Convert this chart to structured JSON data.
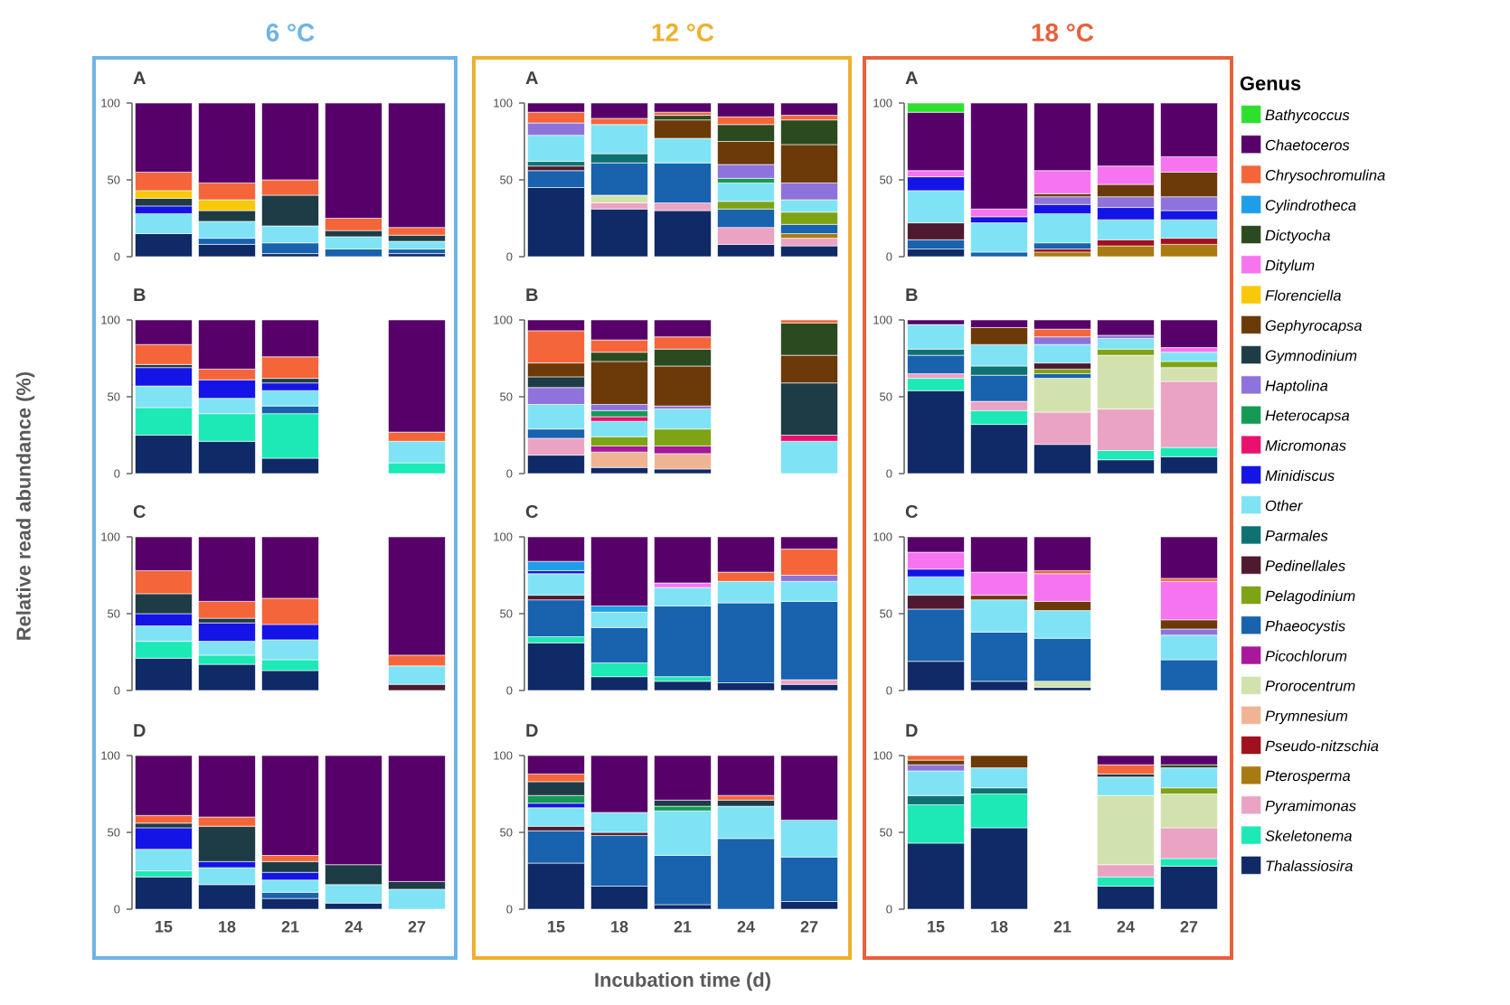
{
  "chart_data": [
    {
      "type": "bar",
      "stacked": true,
      "title": "A",
      "annotations": [
        "6 °C"
      ],
      "ylabel": "Relative read abundance  (%)",
      "legend": "right",
      "legend_title": "Genus",
      "categories": [
        "15",
        "18",
        "21",
        "24",
        "27"
      ],
      "ylim": [
        0,
        100
      ],
      "yticks": [
        0,
        50,
        100
      ],
      "tick_labels": "y",
      "series": [
        {
          "name": "Thalassiosira",
          "color": "#0f2a66",
          "values": [
            15,
            8,
            2,
            0,
            2
          ]
        },
        {
          "name": "Skeletonema",
          "color": "#1de9b6",
          "values": [
            0,
            0,
            0,
            0,
            0
          ]
        },
        {
          "name": "Pyramimonas",
          "color": "#eba3c3",
          "values": [
            0,
            0,
            0,
            0,
            0
          ]
        },
        {
          "name": "Pterosperma",
          "color": "#a87a12",
          "values": [
            0,
            0,
            0,
            0,
            0
          ]
        },
        {
          "name": "Pseudo-nitzschia",
          "color": "#a0101e",
          "values": [
            0,
            0,
            0,
            0,
            0
          ]
        },
        {
          "name": "Prymnesium",
          "color": "#f0b495",
          "values": [
            0,
            0,
            0,
            0,
            0
          ]
        },
        {
          "name": "Prorocentrum",
          "color": "#d2e2ae",
          "values": [
            0,
            0,
            0,
            0,
            0
          ]
        },
        {
          "name": "Picochlorum",
          "color": "#a8189a",
          "values": [
            0,
            0,
            0,
            0,
            0
          ]
        },
        {
          "name": "Phaeocystis",
          "color": "#1862ae",
          "values": [
            0,
            4,
            7,
            5,
            3
          ]
        },
        {
          "name": "Pelagodinium",
          "color": "#7ea314",
          "values": [
            0,
            0,
            0,
            0,
            0
          ]
        },
        {
          "name": "Pedinellales",
          "color": "#4e1a30",
          "values": [
            0,
            0,
            0,
            0,
            0
          ]
        },
        {
          "name": "Parmales",
          "color": "#0f7272",
          "values": [
            0,
            0,
            0,
            0,
            0
          ]
        },
        {
          "name": "Other",
          "color": "#7fe3f5",
          "values": [
            13,
            11,
            11,
            8,
            5
          ]
        },
        {
          "name": "Minidiscus",
          "color": "#1414e6",
          "values": [
            5,
            0,
            0,
            0,
            0
          ]
        },
        {
          "name": "Micromonas",
          "color": "#e8126e",
          "values": [
            0,
            0,
            0,
            0,
            0
          ]
        },
        {
          "name": "Heterocapsa",
          "color": "#149a55",
          "values": [
            0,
            0,
            0,
            0,
            0
          ]
        },
        {
          "name": "Haptolina",
          "color": "#8e73dc",
          "values": [
            0,
            0,
            0,
            0,
            0
          ]
        },
        {
          "name": "Gymnodinium",
          "color": "#1e3c46",
          "values": [
            5,
            7,
            20,
            4,
            4
          ]
        },
        {
          "name": "Gephyrocapsa",
          "color": "#6b3a08",
          "values": [
            0,
            0,
            0,
            0,
            0
          ]
        },
        {
          "name": "Florenciella",
          "color": "#f8c80a",
          "values": [
            5,
            7,
            0,
            0,
            0
          ]
        },
        {
          "name": "Ditylum",
          "color": "#f674f0",
          "values": [
            0,
            0,
            0,
            0,
            0
          ]
        },
        {
          "name": "Dictyocha",
          "color": "#2c4a20",
          "values": [
            0,
            0,
            0,
            0,
            0
          ]
        },
        {
          "name": "Cylindrotheca",
          "color": "#1e9ee8",
          "values": [
            0,
            0,
            0,
            0,
            0
          ]
        },
        {
          "name": "Chrysochromulina",
          "color": "#f4663a",
          "values": [
            12,
            11,
            10,
            8,
            5
          ]
        },
        {
          "name": "Chaetoceros",
          "color": "#57006a",
          "values": [
            45,
            52,
            50,
            75,
            81
          ]
        },
        {
          "name": "Bathycoccus",
          "color": "#2ee02e",
          "values": [
            0,
            0,
            0,
            0,
            0
          ]
        }
      ]
    },
    {
      "type": "bar",
      "stacked": true,
      "title": "A",
      "annotations": [
        "12 °C"
      ],
      "categories": [
        "15",
        "18",
        "21",
        "24",
        "27"
      ],
      "ylim": [
        0,
        100
      ],
      "yticks": [
        0,
        50,
        100
      ],
      "tick_labels": "y",
      "series": [
        {
          "color": "#0f2a66",
          "values": [
            45,
            31,
            30,
            8,
            7
          ]
        },
        {
          "color": "#eba3c3",
          "values": [
            0,
            4,
            5,
            11,
            5
          ]
        },
        {
          "color": "#a87a12",
          "values": [
            0,
            0,
            0,
            0,
            3
          ]
        },
        {
          "color": "#d2e2ae",
          "values": [
            0,
            5,
            0,
            0,
            0
          ]
        },
        {
          "color": "#1862ae",
          "values": [
            11,
            21,
            26,
            12,
            6
          ]
        },
        {
          "color": "#7ea314",
          "values": [
            0,
            0,
            0,
            5,
            8
          ]
        },
        {
          "color": "#4e1a30",
          "values": [
            3,
            0,
            0,
            0,
            0
          ]
        },
        {
          "color": "#0f7272",
          "values": [
            3,
            6,
            0,
            0,
            0
          ]
        },
        {
          "color": "#7fe3f5",
          "values": [
            17,
            19,
            16,
            12,
            8
          ]
        },
        {
          "color": "#149a55",
          "values": [
            0,
            0,
            0,
            3,
            0
          ]
        },
        {
          "color": "#8e73dc",
          "values": [
            8,
            0,
            0,
            9,
            11
          ]
        },
        {
          "color": "#6b3a08",
          "values": [
            0,
            0,
            12,
            15,
            25
          ]
        },
        {
          "color": "#2c4a20",
          "values": [
            0,
            0,
            3,
            11,
            16
          ]
        },
        {
          "color": "#f4663a",
          "values": [
            7,
            4,
            2,
            5,
            3
          ]
        },
        {
          "color": "#57006a",
          "values": [
            6,
            10,
            6,
            9,
            8
          ]
        }
      ]
    },
    {
      "type": "bar",
      "stacked": true,
      "title": "A",
      "annotations": [
        "18 °C"
      ],
      "categories": [
        "15",
        "18",
        "21",
        "24",
        "27"
      ],
      "ylim": [
        0,
        100
      ],
      "yticks": [
        0,
        50,
        100
      ],
      "tick_labels": "y",
      "series": [
        {
          "color": "#0f2a66",
          "values": [
            5,
            0,
            0,
            0,
            0
          ]
        },
        {
          "color": "#a87a12",
          "values": [
            0,
            0,
            3,
            7,
            8
          ]
        },
        {
          "color": "#a0101e",
          "values": [
            0,
            0,
            2,
            4,
            4
          ]
        },
        {
          "color": "#1862ae",
          "values": [
            6,
            3,
            4,
            0,
            0
          ]
        },
        {
          "color": "#4e1a30",
          "values": [
            11,
            0,
            0,
            0,
            0
          ]
        },
        {
          "color": "#7fe3f5",
          "values": [
            21,
            19,
            19,
            13,
            12
          ]
        },
        {
          "color": "#1414e6",
          "values": [
            9,
            4,
            6,
            8,
            6
          ]
        },
        {
          "color": "#8e73dc",
          "values": [
            0,
            0,
            5,
            7,
            9
          ]
        },
        {
          "color": "#6b3a08",
          "values": [
            0,
            0,
            2,
            8,
            16
          ]
        },
        {
          "color": "#f674f0",
          "values": [
            4,
            5,
            15,
            12,
            10
          ]
        },
        {
          "color": "#57006a",
          "values": [
            38,
            69,
            44,
            41,
            35
          ]
        },
        {
          "color": "#2ee02e",
          "values": [
            6,
            0,
            0,
            0,
            0
          ]
        }
      ]
    },
    {
      "type": "bar",
      "stacked": true,
      "title": "B",
      "categories": [
        "15",
        "18",
        "21",
        "24",
        "27"
      ],
      "ylim": [
        0,
        100
      ],
      "yticks": [
        0,
        50,
        100
      ],
      "tick_labels": "y",
      "series": [
        {
          "color": "#0f2a66",
          "values": [
            25,
            21,
            10,
            null,
            0
          ]
        },
        {
          "color": "#1de9b6",
          "values": [
            18,
            18,
            29,
            null,
            7
          ]
        },
        {
          "color": "#1862ae",
          "values": [
            0,
            0,
            5,
            null,
            0
          ]
        },
        {
          "color": "#7fe3f5",
          "values": [
            14,
            10,
            10,
            null,
            14
          ]
        },
        {
          "color": "#1414e6",
          "values": [
            12,
            12,
            5,
            null,
            0
          ]
        },
        {
          "color": "#1e3c46",
          "values": [
            2,
            0,
            3,
            null,
            0
          ]
        },
        {
          "color": "#f4663a",
          "values": [
            13,
            7,
            14,
            null,
            6
          ]
        },
        {
          "color": "#57006a",
          "values": [
            16,
            32,
            24,
            null,
            73
          ]
        }
      ]
    },
    {
      "type": "bar",
      "stacked": true,
      "title": "B",
      "categories": [
        "15",
        "18",
        "21",
        "24",
        "27"
      ],
      "ylim": [
        0,
        100
      ],
      "yticks": [
        0,
        50,
        100
      ],
      "tick_labels": "y",
      "series": [
        {
          "color": "#0f2a66",
          "values": [
            12,
            4,
            3,
            null,
            0
          ]
        },
        {
          "color": "#eba3c3",
          "values": [
            11,
            0,
            0,
            null,
            0
          ]
        },
        {
          "color": "#f0b495",
          "values": [
            0,
            10,
            10,
            null,
            0
          ]
        },
        {
          "color": "#a8189a",
          "values": [
            0,
            4,
            5,
            null,
            0
          ]
        },
        {
          "color": "#1862ae",
          "values": [
            6,
            0,
            0,
            null,
            0
          ]
        },
        {
          "color": "#7ea314",
          "values": [
            0,
            6,
            11,
            null,
            0
          ]
        },
        {
          "color": "#7fe3f5",
          "values": [
            16,
            10,
            13,
            null,
            21
          ]
        },
        {
          "color": "#e8126e",
          "values": [
            0,
            3,
            0,
            null,
            4
          ]
        },
        {
          "color": "#149a55",
          "values": [
            0,
            4,
            0,
            null,
            0
          ]
        },
        {
          "color": "#8e73dc",
          "values": [
            11,
            4,
            2,
            null,
            0
          ]
        },
        {
          "color": "#1e3c46",
          "values": [
            7,
            0,
            0,
            null,
            34
          ]
        },
        {
          "color": "#6b3a08",
          "values": [
            9,
            28,
            26,
            null,
            18
          ]
        },
        {
          "color": "#2c4a20",
          "values": [
            0,
            6,
            11,
            null,
            21
          ]
        },
        {
          "color": "#f4663a",
          "values": [
            21,
            8,
            8,
            null,
            2
          ]
        },
        {
          "color": "#57006a",
          "values": [
            7,
            13,
            11,
            null,
            0
          ]
        }
      ]
    },
    {
      "type": "bar",
      "stacked": true,
      "title": "B",
      "categories": [
        "15",
        "18",
        "21",
        "24",
        "27"
      ],
      "ylim": [
        0,
        100
      ],
      "yticks": [
        0,
        50,
        100
      ],
      "tick_labels": "y",
      "series": [
        {
          "color": "#0f2a66",
          "values": [
            54,
            32,
            19,
            9,
            11
          ]
        },
        {
          "color": "#1de9b6",
          "values": [
            8,
            9,
            0,
            6,
            6
          ]
        },
        {
          "color": "#eba3c3",
          "values": [
            3,
            6,
            21,
            27,
            43
          ]
        },
        {
          "color": "#d2e2ae",
          "values": [
            0,
            0,
            22,
            35,
            9
          ]
        },
        {
          "color": "#1862ae",
          "values": [
            12,
            17,
            3,
            0,
            0
          ]
        },
        {
          "color": "#7ea314",
          "values": [
            0,
            0,
            3,
            4,
            4
          ]
        },
        {
          "color": "#4e1a30",
          "values": [
            0,
            0,
            4,
            0,
            0
          ]
        },
        {
          "color": "#0f7272",
          "values": [
            4,
            6,
            0,
            0,
            0
          ]
        },
        {
          "color": "#7fe3f5",
          "values": [
            16,
            14,
            12,
            7,
            6
          ]
        },
        {
          "color": "#8e73dc",
          "values": [
            0,
            0,
            5,
            2,
            0
          ]
        },
        {
          "color": "#6b3a08",
          "values": [
            0,
            11,
            0,
            0,
            0
          ]
        },
        {
          "color": "#f674f0",
          "values": [
            0,
            0,
            0,
            0,
            3
          ]
        },
        {
          "color": "#f4663a",
          "values": [
            0,
            0,
            5,
            0,
            0
          ]
        },
        {
          "color": "#57006a",
          "values": [
            3,
            5,
            6,
            10,
            18
          ]
        }
      ]
    },
    {
      "type": "bar",
      "stacked": true,
      "title": "C",
      "categories": [
        "15",
        "18",
        "21",
        "24",
        "27"
      ],
      "ylim": [
        0,
        100
      ],
      "yticks": [
        0,
        50,
        100
      ],
      "tick_labels": "y",
      "series": [
        {
          "color": "#0f2a66",
          "values": [
            21,
            17,
            13,
            null,
            0
          ]
        },
        {
          "color": "#1de9b6",
          "values": [
            11,
            6,
            7,
            null,
            0
          ]
        },
        {
          "color": "#4e1a30",
          "values": [
            0,
            0,
            0,
            null,
            4
          ]
        },
        {
          "color": "#7fe3f5",
          "values": [
            10,
            9,
            13,
            null,
            12
          ]
        },
        {
          "color": "#1414e6",
          "values": [
            8,
            12,
            10,
            null,
            0
          ]
        },
        {
          "color": "#1e3c46",
          "values": [
            13,
            3,
            0,
            null,
            0
          ]
        },
        {
          "color": "#f4663a",
          "values": [
            15,
            11,
            17,
            null,
            7
          ]
        },
        {
          "color": "#57006a",
          "values": [
            22,
            42,
            40,
            null,
            77
          ]
        }
      ]
    },
    {
      "type": "bar",
      "stacked": true,
      "title": "C",
      "categories": [
        "15",
        "18",
        "21",
        "24",
        "27"
      ],
      "ylim": [
        0,
        100
      ],
      "yticks": [
        0,
        50,
        100
      ],
      "tick_labels": "y",
      "series": [
        {
          "color": "#0f2a66",
          "values": [
            31,
            9,
            6,
            5,
            4
          ]
        },
        {
          "color": "#1de9b6",
          "values": [
            4,
            9,
            3,
            0,
            0
          ]
        },
        {
          "color": "#eba3c3",
          "values": [
            0,
            0,
            0,
            0,
            3
          ]
        },
        {
          "color": "#1862ae",
          "values": [
            24,
            23,
            46,
            52,
            51
          ]
        },
        {
          "color": "#4e1a30",
          "values": [
            3,
            0,
            0,
            0,
            0
          ]
        },
        {
          "color": "#7fe3f5",
          "values": [
            14,
            10,
            12,
            14,
            13
          ]
        },
        {
          "color": "#1414e6",
          "values": [
            2,
            0,
            0,
            0,
            0
          ]
        },
        {
          "color": "#8e73dc",
          "values": [
            0,
            0,
            0,
            0,
            4
          ]
        },
        {
          "color": "#f674f0",
          "values": [
            0,
            0,
            3,
            0,
            0
          ]
        },
        {
          "color": "#1e9ee8",
          "values": [
            6,
            4,
            0,
            0,
            0
          ]
        },
        {
          "color": "#f4663a",
          "values": [
            0,
            0,
            0,
            6,
            17
          ]
        },
        {
          "color": "#57006a",
          "values": [
            16,
            45,
            30,
            23,
            8
          ]
        }
      ]
    },
    {
      "type": "bar",
      "stacked": true,
      "title": "C",
      "categories": [
        "15",
        "18",
        "21",
        "24",
        "27"
      ],
      "ylim": [
        0,
        100
      ],
      "yticks": [
        0,
        50,
        100
      ],
      "tick_labels": "y",
      "series": [
        {
          "color": "#0f2a66",
          "values": [
            19,
            6,
            2,
            null,
            0
          ]
        },
        {
          "color": "#d2e2ae",
          "values": [
            0,
            0,
            4,
            null,
            0
          ]
        },
        {
          "color": "#1862ae",
          "values": [
            34,
            32,
            28,
            null,
            20
          ]
        },
        {
          "color": "#4e1a30",
          "values": [
            9,
            0,
            0,
            null,
            0
          ]
        },
        {
          "color": "#7fe3f5",
          "values": [
            12,
            21,
            18,
            null,
            16
          ]
        },
        {
          "color": "#1414e6",
          "values": [
            5,
            0,
            0,
            null,
            0
          ]
        },
        {
          "color": "#8e73dc",
          "values": [
            0,
            0,
            0,
            null,
            4
          ]
        },
        {
          "color": "#6b3a08",
          "values": [
            0,
            3,
            6,
            null,
            6
          ]
        },
        {
          "color": "#f674f0",
          "values": [
            11,
            15,
            18,
            null,
            25
          ]
        },
        {
          "color": "#f4663a",
          "values": [
            0,
            0,
            2,
            null,
            2
          ]
        },
        {
          "color": "#57006a",
          "values": [
            10,
            23,
            22,
            null,
            27
          ]
        }
      ]
    },
    {
      "type": "bar",
      "stacked": true,
      "title": "D",
      "categories": [
        "15",
        "18",
        "21",
        "24",
        "27"
      ],
      "ylim": [
        0,
        100
      ],
      "yticks": [
        0,
        50,
        100
      ],
      "series": [
        {
          "color": "#0f2a66",
          "values": [
            21,
            16,
            7,
            4,
            0
          ]
        },
        {
          "color": "#1de9b6",
          "values": [
            4,
            0,
            0,
            0,
            0
          ]
        },
        {
          "color": "#1862ae",
          "values": [
            0,
            0,
            4,
            0,
            0
          ]
        },
        {
          "color": "#7fe3f5",
          "values": [
            14,
            11,
            8,
            12,
            13
          ]
        },
        {
          "color": "#1414e6",
          "values": [
            14,
            4,
            5,
            0,
            0
          ]
        },
        {
          "color": "#1e3c46",
          "values": [
            3,
            23,
            7,
            13,
            5
          ]
        },
        {
          "color": "#f4663a",
          "values": [
            5,
            6,
            4,
            0,
            0
          ]
        },
        {
          "color": "#57006a",
          "values": [
            39,
            40,
            65,
            71,
            82
          ]
        }
      ]
    },
    {
      "type": "bar",
      "stacked": true,
      "title": "D",
      "xlabel": "Incubation time (d)",
      "categories": [
        "15",
        "18",
        "21",
        "24",
        "27"
      ],
      "ylim": [
        0,
        100
      ],
      "yticks": [
        0,
        50,
        100
      ],
      "series": [
        {
          "color": "#0f2a66",
          "values": [
            30,
            15,
            3,
            0,
            5
          ]
        },
        {
          "color": "#1862ae",
          "values": [
            21,
            33,
            32,
            46,
            29
          ]
        },
        {
          "color": "#4e1a30",
          "values": [
            3,
            2,
            0,
            0,
            0
          ]
        },
        {
          "color": "#7fe3f5",
          "values": [
            12,
            13,
            29,
            21,
            24
          ]
        },
        {
          "color": "#1414e6",
          "values": [
            3,
            0,
            0,
            0,
            0
          ]
        },
        {
          "color": "#149a55",
          "values": [
            5,
            0,
            3,
            0,
            0
          ]
        },
        {
          "color": "#1e3c46",
          "values": [
            9,
            0,
            4,
            4,
            0
          ]
        },
        {
          "color": "#f4663a",
          "values": [
            5,
            0,
            0,
            3,
            0
          ]
        },
        {
          "color": "#57006a",
          "values": [
            12,
            37,
            29,
            26,
            42
          ]
        }
      ]
    },
    {
      "type": "bar",
      "stacked": true,
      "title": "D",
      "categories": [
        "15",
        "18",
        "21",
        "24",
        "27"
      ],
      "ylim": [
        0,
        100
      ],
      "yticks": [
        0,
        50,
        100
      ],
      "series": [
        {
          "color": "#0f2a66",
          "values": [
            43,
            53,
            null,
            15,
            28
          ]
        },
        {
          "color": "#1de9b6",
          "values": [
            25,
            22,
            null,
            6,
            5
          ]
        },
        {
          "color": "#eba3c3",
          "values": [
            0,
            0,
            null,
            8,
            20
          ]
        },
        {
          "color": "#d2e2ae",
          "values": [
            0,
            0,
            null,
            45,
            22
          ]
        },
        {
          "color": "#7ea314",
          "values": [
            0,
            0,
            null,
            0,
            4
          ]
        },
        {
          "color": "#0f7272",
          "values": [
            6,
            4,
            null,
            0,
            0
          ]
        },
        {
          "color": "#7fe3f5",
          "values": [
            16,
            13,
            null,
            12,
            13
          ]
        },
        {
          "color": "#8e73dc",
          "values": [
            4,
            0,
            null,
            0,
            0
          ]
        },
        {
          "color": "#1e3c46",
          "values": [
            0,
            0,
            null,
            2,
            0
          ]
        },
        {
          "color": "#6b3a08",
          "values": [
            3,
            8,
            null,
            0,
            0
          ]
        },
        {
          "color": "#2c4a20",
          "values": [
            0,
            0,
            null,
            0,
            2
          ]
        },
        {
          "color": "#f4663a",
          "values": [
            3,
            0,
            null,
            6,
            0
          ]
        },
        {
          "color": "#57006a",
          "values": [
            0,
            0,
            null,
            6,
            6
          ]
        }
      ]
    }
  ]
}
